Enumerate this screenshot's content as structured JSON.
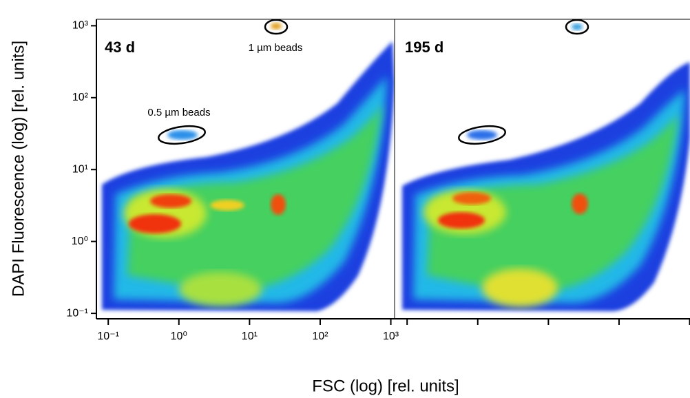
{
  "chart_data": [
    {
      "type": "density",
      "xlabel": "FSC (log) [rel. units]",
      "ylabel": "DAPI Fluorescence (log) [rel. units]",
      "xlim": [
        0.068,
        1130
      ],
      "ylim": [
        0.084,
        1230
      ],
      "log_x": true,
      "log_y": true,
      "xticks": [
        {
          "value": 0.1,
          "label": "10⁻¹"
        },
        {
          "value": 1,
          "label": "10⁰"
        },
        {
          "value": 10,
          "label": "10¹"
        },
        {
          "value": 100,
          "label": "10²"
        },
        {
          "value": 1000,
          "label": "10³"
        }
      ],
      "yticks": [
        {
          "value": 0.1,
          "label": "10⁻¹"
        },
        {
          "value": 1,
          "label": "10⁰"
        },
        {
          "value": 10,
          "label": "10¹"
        },
        {
          "value": 100,
          "label": "10²"
        },
        {
          "value": 1000,
          "label": "10³"
        }
      ],
      "panel_label": "43 d",
      "annotations": [
        "1 µm beads",
        "0.5 µm beads"
      ]
    },
    {
      "type": "density",
      "xlim": [
        0.068,
        1130
      ],
      "ylim": [
        0.084,
        1230
      ],
      "log_x": true,
      "log_y": true,
      "xticks": [
        0.1,
        1,
        10,
        100,
        1000
      ],
      "show_xtick_labels": false,
      "panel_label": "195 d"
    }
  ]
}
